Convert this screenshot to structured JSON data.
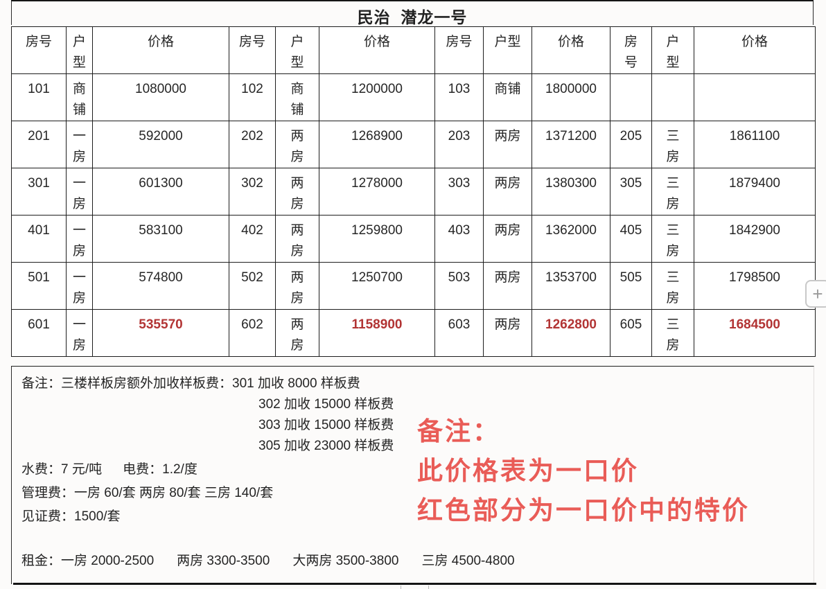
{
  "title": "民治  潜龙一号",
  "table": {
    "header_cells": [
      "房号",
      "户\n型",
      "价格",
      "房号",
      "户\n型",
      "价格",
      "房号",
      "户型",
      "价格",
      "房\n号",
      "户\n型",
      "价格"
    ],
    "rows": [
      {
        "cells": [
          "101",
          "商\n铺",
          "1080000",
          "102",
          "商\n铺",
          "1200000",
          "103",
          "商铺",
          "1800000",
          "",
          "",
          ""
        ],
        "special": false
      },
      {
        "cells": [
          "201",
          "一\n房",
          "592000",
          "202",
          "两\n房",
          "1268900",
          "203",
          "两房",
          "1371200",
          "205",
          "三\n房",
          "1861100"
        ],
        "special": false
      },
      {
        "cells": [
          "301",
          "一\n房",
          "601300",
          "302",
          "两\n房",
          "1278000",
          "303",
          "两房",
          "1380300",
          "305",
          "三\n房",
          "1879400"
        ],
        "special": false
      },
      {
        "cells": [
          "401",
          "一\n房",
          "583100",
          "402",
          "两\n房",
          "1259800",
          "403",
          "两房",
          "1362000",
          "405",
          "三\n房",
          "1842900"
        ],
        "special": false
      },
      {
        "cells": [
          "501",
          "一\n房",
          "574800",
          "502",
          "两\n房",
          "1250700",
          "503",
          "两房",
          "1353700",
          "505",
          "三\n房",
          "1798500"
        ],
        "special": false
      },
      {
        "cells": [
          "601",
          "一\n房",
          "535570",
          "602",
          "两\n房",
          "1158900",
          "603",
          "两房",
          "1262800",
          "605",
          "三\n房",
          "1684500"
        ],
        "special": true
      }
    ]
  },
  "notes": {
    "remark_line": "备注：三楼样板房额外加收样板费：301 加收 8000 样板费",
    "remark_sub_lines": [
      "302 加收 15000 样板费",
      "303 加收 15000 样板费",
      "305 加收 23000 样板费"
    ],
    "water_fee": "水费：7 元/吨",
    "electric_fee": "电费：1.2/度",
    "management_fee": "管理费：一房 60/套 两房 80/套 三房 140/套",
    "witness_fee": "见证费：1500/套",
    "rent_items": [
      "租金：一房 2000-2500",
      "两房 3300-3500",
      "大两房 3500-3800",
      "三房 4500-4800"
    ]
  },
  "watermark": {
    "lines": [
      "备注：",
      "此价格表为一口价",
      "红色部分为一口价中的特价"
    ]
  },
  "plus_button": {
    "label": "+"
  },
  "colors": {
    "special_price_red": "#b23434",
    "watermark_red": "#e8504b",
    "table_border": "#1d1d1d"
  }
}
